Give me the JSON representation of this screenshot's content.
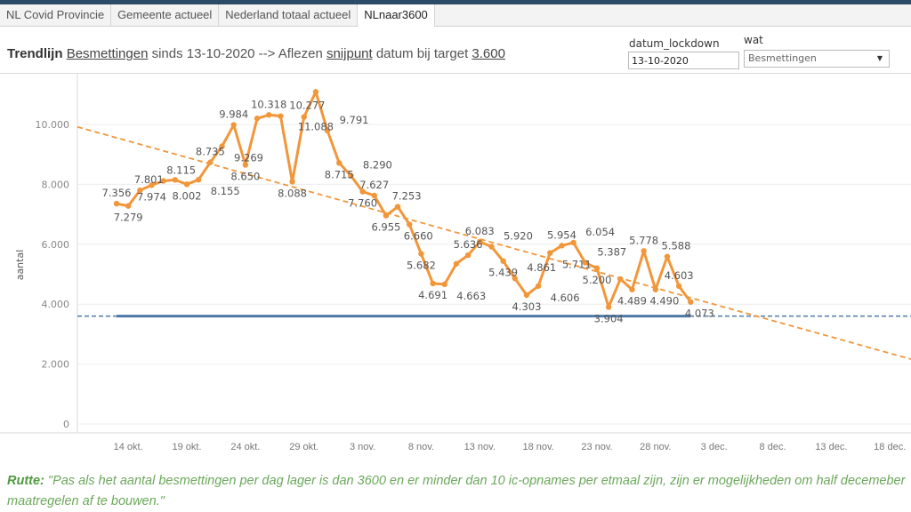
{
  "tabs": [
    {
      "label": "NL Covid Provincie",
      "active": false
    },
    {
      "label": "Gemeente actueel",
      "active": false
    },
    {
      "label": "Nederland totaal actueel",
      "active": false
    },
    {
      "label": "NLnaar3600",
      "active": true
    }
  ],
  "title": {
    "prefix": "Trendlijn",
    "measure": "Besmettingen",
    "middle": "sinds 13-10-2020 --> Aflezen",
    "snijpunt": "snijpunt",
    "after": "datum bij target",
    "target": "3.600"
  },
  "controls": {
    "datum_label": "datum_lockdown",
    "datum_value": "13-10-2020",
    "wat_label": "wat",
    "wat_value": "Besmettingen"
  },
  "colors": {
    "series": "#f2963a",
    "target": "#4e79a7",
    "grid": "#ececec",
    "quote": "#6aa85a"
  },
  "chart_data": {
    "type": "line",
    "ylabel": "aantal",
    "ylim": [
      0,
      11500
    ],
    "yticks": [
      0,
      2000,
      4000,
      6000,
      8000,
      10000
    ],
    "ytick_labels": [
      "0",
      "2.000",
      "4.000",
      "6.000",
      "8.000",
      "10.000"
    ],
    "xlim": [
      "2020-10-09",
      "2020-12-20"
    ],
    "xtick_labels": [
      "14 okt.",
      "19 okt.",
      "24 okt.",
      "29 okt.",
      "3 nov.",
      "8 nov.",
      "13 nov.",
      "18 nov.",
      "23 nov.",
      "28 nov.",
      "3 dec.",
      "8 dec.",
      "13 dec.",
      "18 dec."
    ],
    "xtick_dates": [
      "2020-10-14",
      "2020-10-19",
      "2020-10-24",
      "2020-10-29",
      "2020-11-03",
      "2020-11-08",
      "2020-11-13",
      "2020-11-18",
      "2020-11-23",
      "2020-11-28",
      "2020-12-03",
      "2020-12-08",
      "2020-12-13",
      "2020-12-18"
    ],
    "start_date": "2020-10-13",
    "values": [
      7356,
      7279,
      7801,
      7974,
      8115,
      8150,
      8002,
      8155,
      8735,
      9269,
      9984,
      8650,
      10200,
      10318,
      10277,
      8088,
      10250,
      11088,
      9791,
      8715,
      8290,
      7760,
      7627,
      6955,
      7253,
      6660,
      5682,
      4691,
      4663,
      5350,
      5636,
      6083,
      5920,
      5439,
      4861,
      4303,
      4606,
      5711,
      5954,
      6054,
      5387,
      5200,
      3904,
      4840,
      4489,
      5778,
      4490,
      5588,
      4603,
      4073
    ],
    "labels": [
      "7.356",
      "7.279",
      "7.801",
      "7.974",
      "8.115",
      "",
      "8.002",
      "8.155",
      "8.735",
      "9.269",
      "9.984",
      "8.650",
      "",
      "10.318",
      "10.277",
      "8.088",
      "",
      "11.088",
      "9.791",
      "8.715",
      "8.290",
      "7.760",
      "7.627",
      "6.955",
      "7.253",
      "6.660",
      "5.682",
      "4.691",
      "4.663",
      "",
      "5.636",
      "6.083",
      "5.920",
      "5.439",
      "4.861",
      "4.303",
      "4.606",
      "5.711",
      "5.954",
      "6.054",
      "5.387",
      "5.200",
      "3.904",
      "",
      "4.489",
      "5.778",
      "4.490",
      "5.588",
      "4.603",
      "4.073"
    ],
    "trendline": {
      "value_at_start": 9555,
      "slope_per_day": -109
    },
    "target": 3600,
    "grid": true
  },
  "quote": {
    "speaker": "Rutte:",
    "text": " \"Pas als het aantal besmettingen per dag lager is dan 3600 en er minder dan 10 ic-opnames per etmaal zijn, zijn er mogelijkheden om half decemeber  maatregelen af te bouwen.\""
  }
}
